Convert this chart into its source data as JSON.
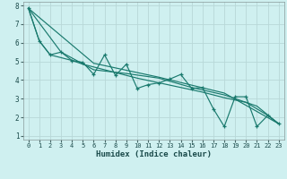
{
  "xlabel": "Humidex (Indice chaleur)",
  "background_color": "#cff0f0",
  "grid_color": "#b8d8d8",
  "line_color": "#1a7a6e",
  "xlim": [
    -0.5,
    23.5
  ],
  "ylim": [
    0.8,
    8.2
  ],
  "yticks": [
    1,
    2,
    3,
    4,
    5,
    6,
    7,
    8
  ],
  "xticks": [
    0,
    1,
    2,
    3,
    4,
    5,
    6,
    7,
    8,
    9,
    10,
    11,
    12,
    13,
    14,
    15,
    16,
    17,
    18,
    19,
    20,
    21,
    22,
    23
  ],
  "series1": [
    [
      0,
      7.85
    ],
    [
      1,
      6.1
    ],
    [
      2,
      5.35
    ],
    [
      3,
      5.5
    ],
    [
      4,
      5.05
    ],
    [
      5,
      4.95
    ],
    [
      6,
      4.3
    ],
    [
      7,
      5.35
    ],
    [
      8,
      4.25
    ],
    [
      9,
      4.85
    ],
    [
      10,
      3.55
    ],
    [
      11,
      3.75
    ],
    [
      12,
      3.85
    ],
    [
      13,
      4.05
    ],
    [
      14,
      4.3
    ],
    [
      15,
      3.55
    ],
    [
      16,
      3.6
    ],
    [
      17,
      2.45
    ],
    [
      18,
      1.5
    ],
    [
      19,
      3.1
    ],
    [
      20,
      3.1
    ],
    [
      21,
      1.5
    ],
    [
      22,
      2.1
    ],
    [
      23,
      1.65
    ]
  ],
  "series2": [
    [
      0,
      7.85
    ],
    [
      1,
      6.1
    ],
    [
      2,
      5.35
    ],
    [
      3,
      5.2
    ],
    [
      4,
      5.05
    ],
    [
      5,
      4.85
    ],
    [
      6,
      4.7
    ],
    [
      7,
      4.55
    ],
    [
      8,
      4.4
    ],
    [
      10,
      4.1
    ],
    [
      12,
      3.85
    ],
    [
      14,
      3.6
    ],
    [
      16,
      3.35
    ],
    [
      18,
      3.05
    ],
    [
      20,
      2.8
    ],
    [
      22,
      2.1
    ],
    [
      23,
      1.65
    ]
  ],
  "series3": [
    [
      0,
      7.85
    ],
    [
      3,
      5.5
    ],
    [
      6,
      4.55
    ],
    [
      9,
      4.35
    ],
    [
      12,
      4.1
    ],
    [
      15,
      3.6
    ],
    [
      18,
      3.2
    ],
    [
      21,
      2.6
    ],
    [
      23,
      1.65
    ]
  ],
  "series4": [
    [
      0,
      7.85
    ],
    [
      6,
      4.9
    ],
    [
      12,
      4.15
    ],
    [
      18,
      3.3
    ],
    [
      23,
      1.65
    ]
  ]
}
